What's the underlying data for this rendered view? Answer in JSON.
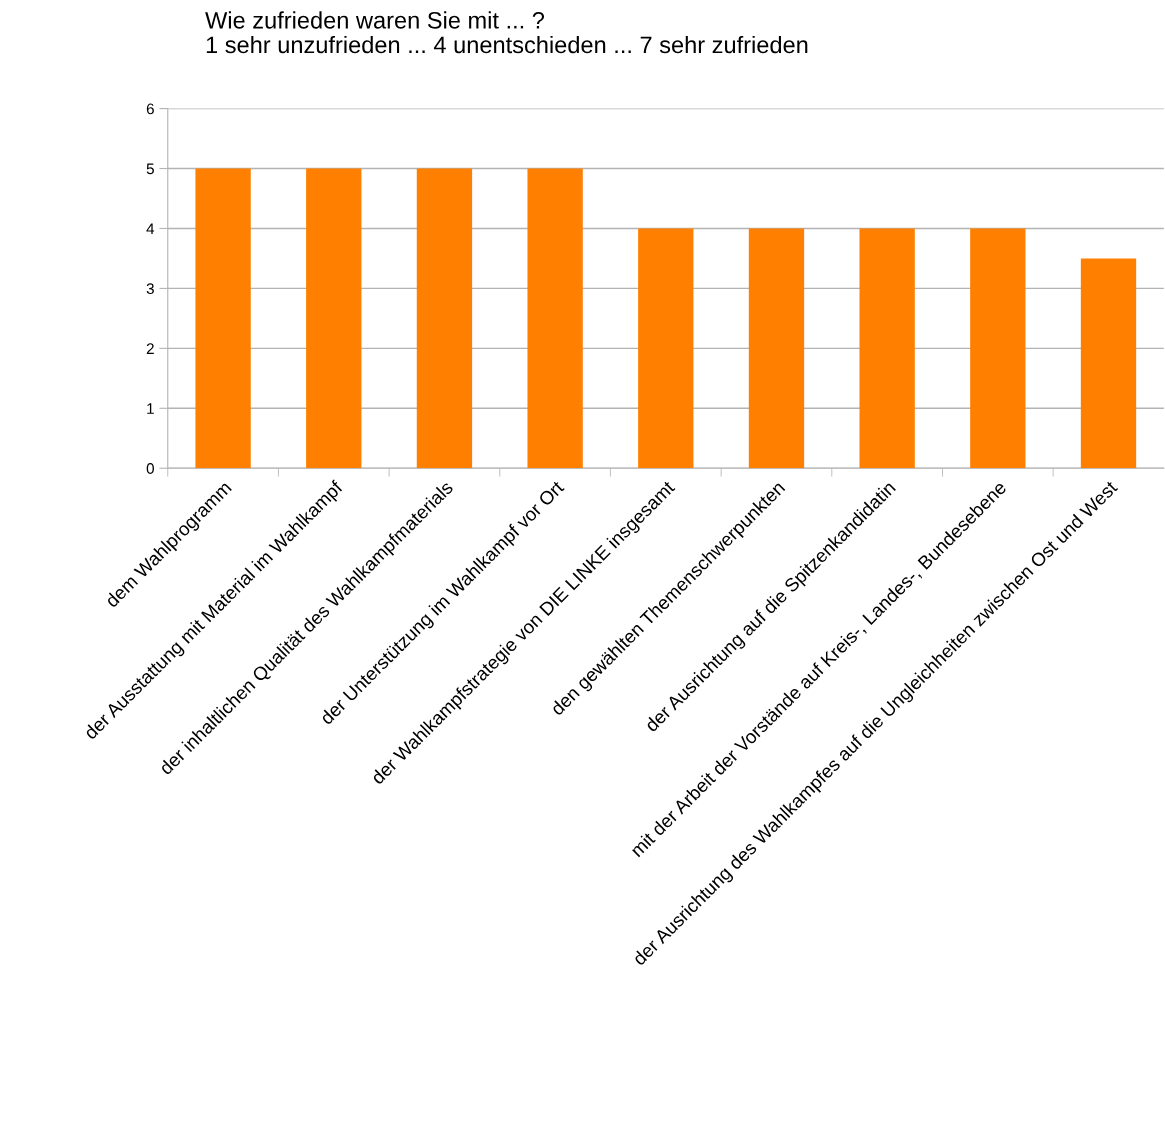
{
  "chart_data": {
    "type": "bar",
    "title": "Wie zufrieden waren Sie mit ... ?\n1 sehr unzufrieden ... 4 unentschieden ... 7 sehr zufrieden",
    "categories": [
      "dem Wahlprogramm",
      "der Ausstattung mit Material im Wahlkampf",
      "der inhaltlichen Qualität des Wahlkampfmaterials",
      "der Unterstützung im Wahlkampf vor Ort",
      "der Wahlkampfstrategie von DIE LINKE insgesamt",
      "den gewählten Themenschwerpunkten",
      "der Ausrichtung auf die Spitzenkandidatin",
      "mit der Arbeit der Vorstände auf Kreis-, Landes-, Bundesebene",
      "der Ausrichtung des Wahlkampfes auf die Ungleichheiten zwischen Ost und West"
    ],
    "values": [
      5,
      5,
      5,
      5,
      4,
      4,
      4,
      4,
      3.5
    ],
    "color": "#ff8000",
    "ylim": [
      0,
      6
    ],
    "yticks": [
      0,
      1,
      2,
      3,
      4,
      5,
      6
    ],
    "grid": "y",
    "legend": false
  }
}
